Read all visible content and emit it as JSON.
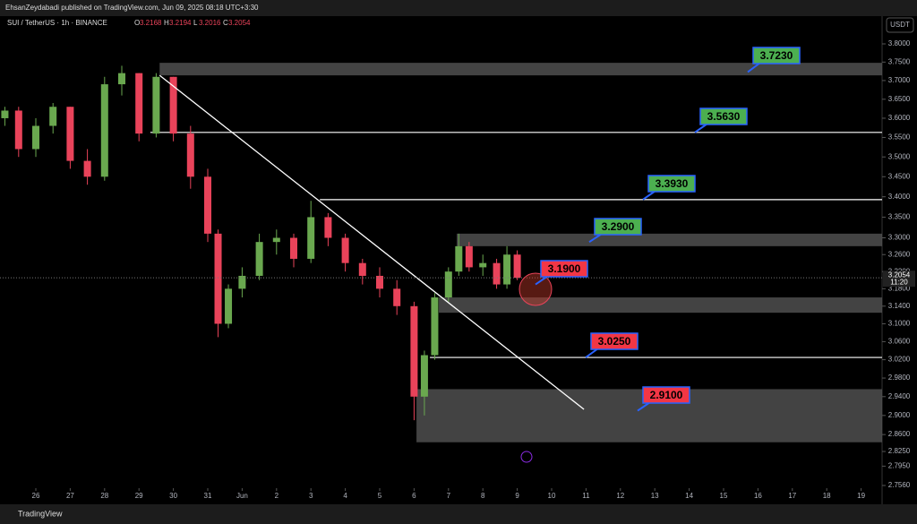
{
  "header": {
    "publisher": "EhsanZeydabadi published on TradingView.com, Jun 09, 2025 08:18 UTC+3:30",
    "symbol": "SUI / TetherUS · 1h · BINANCE",
    "ohlc": [
      {
        "key": "O",
        "value": "3.2168"
      },
      {
        "key": "H",
        "value": "3.2194"
      },
      {
        "key": "L",
        "value": "3.2016"
      },
      {
        "key": "C",
        "value": "3.2054"
      }
    ]
  },
  "chart_data": {
    "type": "candlestick",
    "log_scale": true,
    "currency": "USDT",
    "up_color": "#6aa84f",
    "down_color": "#e9435a",
    "x": [
      -0.9,
      -0.5,
      0,
      0.5,
      1,
      1.5,
      2,
      2.5,
      3,
      3.5,
      4,
      4.5,
      5,
      5.3,
      5.6,
      6,
      6.5,
      7,
      7.5,
      8,
      8.5,
      9,
      9.5,
      10,
      10.5,
      11,
      11.3,
      11.6,
      12,
      12.3,
      12.6,
      13,
      13.4,
      13.7,
      14
    ],
    "open": [
      3.6,
      3.62,
      3.52,
      3.58,
      3.63,
      3.49,
      3.45,
      3.69,
      3.72,
      3.56,
      3.71,
      3.56,
      3.45,
      3.31,
      3.1,
      3.18,
      3.21,
      3.29,
      3.3,
      3.25,
      3.35,
      3.3,
      3.24,
      3.21,
      3.18,
      3.14,
      2.94,
      3.03,
      3.16,
      3.22,
      3.28,
      3.23,
      3.24,
      3.19,
      3.26
    ],
    "high": [
      3.63,
      3.63,
      3.6,
      3.64,
      3.63,
      3.52,
      3.71,
      3.74,
      3.72,
      3.72,
      3.71,
      3.58,
      3.47,
      3.32,
      3.19,
      3.23,
      3.31,
      3.32,
      3.31,
      3.39,
      3.36,
      3.31,
      3.25,
      3.23,
      3.2,
      3.15,
      3.04,
      3.17,
      3.23,
      3.31,
      3.29,
      3.26,
      3.25,
      3.28,
      3.27
    ],
    "low": [
      3.58,
      3.5,
      3.5,
      3.56,
      3.47,
      3.43,
      3.44,
      3.66,
      3.54,
      3.55,
      3.54,
      3.42,
      3.29,
      3.07,
      3.09,
      3.16,
      3.2,
      3.26,
      3.23,
      3.24,
      3.28,
      3.22,
      3.19,
      3.16,
      3.12,
      2.89,
      2.9,
      3.02,
      3.15,
      3.21,
      3.22,
      3.21,
      3.18,
      3.18,
      3.2
    ],
    "close": [
      3.62,
      3.52,
      3.58,
      3.63,
      3.49,
      3.45,
      3.69,
      3.72,
      3.56,
      3.71,
      3.56,
      3.45,
      3.31,
      3.1,
      3.18,
      3.21,
      3.29,
      3.3,
      3.25,
      3.35,
      3.3,
      3.24,
      3.21,
      3.18,
      3.14,
      2.94,
      3.03,
      3.16,
      3.22,
      3.28,
      3.23,
      3.24,
      3.19,
      3.26,
      3.2054
    ],
    "xlim": [
      -1.0417,
      24.6094
    ],
    "xticks": [
      {
        "value": 0,
        "label": "26"
      },
      {
        "value": 1,
        "label": "27"
      },
      {
        "value": 2,
        "label": "28"
      },
      {
        "value": 3,
        "label": "29"
      },
      {
        "value": 4,
        "label": "30"
      },
      {
        "value": 5,
        "label": "31"
      },
      {
        "value": 6,
        "label": "Jun"
      },
      {
        "value": 7,
        "label": "2"
      },
      {
        "value": 8,
        "label": "3"
      },
      {
        "value": 9,
        "label": "4"
      },
      {
        "value": 10,
        "label": "5"
      },
      {
        "value": 11,
        "label": "6"
      },
      {
        "value": 12,
        "label": "7"
      },
      {
        "value": 13,
        "label": "8"
      },
      {
        "value": 14,
        "label": "9"
      },
      {
        "value": 15,
        "label": "10"
      },
      {
        "value": 16,
        "label": "11"
      },
      {
        "value": 17,
        "label": "12"
      },
      {
        "value": 18,
        "label": "13"
      },
      {
        "value": 19,
        "label": "14"
      },
      {
        "value": 20,
        "label": "15"
      },
      {
        "value": 21,
        "label": "16"
      },
      {
        "value": 22,
        "label": "17"
      },
      {
        "value": 23,
        "label": "18"
      },
      {
        "value": 24,
        "label": "19"
      }
    ],
    "ylim": [
      2.7506,
      3.8775
    ],
    "yticks": [
      {
        "value": 3.8,
        "label": "3.8000"
      },
      {
        "value": 3.75,
        "label": "3.7500"
      },
      {
        "value": 3.7,
        "label": "3.7000"
      },
      {
        "value": 3.65,
        "label": "3.6500"
      },
      {
        "value": 3.6,
        "label": "3.6000"
      },
      {
        "value": 3.55,
        "label": "3.5500"
      },
      {
        "value": 3.5,
        "label": "3.5000"
      },
      {
        "value": 3.45,
        "label": "3.4500"
      },
      {
        "value": 3.4,
        "label": "3.4000"
      },
      {
        "value": 3.35,
        "label": "3.3500"
      },
      {
        "value": 3.3,
        "label": "3.3000"
      },
      {
        "value": 3.26,
        "label": "3.2600"
      },
      {
        "value": 3.22,
        "label": "3.2200"
      },
      {
        "value": 3.18,
        "label": "3.1800"
      },
      {
        "value": 3.14,
        "label": "3.1400"
      },
      {
        "value": 3.1,
        "label": "3.1000"
      },
      {
        "value": 3.06,
        "label": "3.0600"
      },
      {
        "value": 3.02,
        "label": "3.0200"
      },
      {
        "value": 2.98,
        "label": "2.9800"
      },
      {
        "value": 2.94,
        "label": "2.9400"
      },
      {
        "value": 2.9,
        "label": "2.9000"
      },
      {
        "value": 2.86,
        "label": "2.8600"
      },
      {
        "value": 2.825,
        "label": "2.8250"
      },
      {
        "value": 2.795,
        "label": "2.7950"
      },
      {
        "value": 2.756,
        "label": "2.7560"
      }
    ],
    "last": {
      "value": 3.2054,
      "label": "3.2054",
      "countdown": "11:20"
    },
    "levels": [
      {
        "value": 3.723,
        "label": "3.7230",
        "color": "#4caf50",
        "zone": [
          3.714,
          3.748
        ],
        "from": 3.6
      },
      {
        "value": 3.563,
        "label": "3.5630",
        "color": "#4caf50",
        "from": 3.33
      },
      {
        "value": 3.393,
        "label": "3.3930",
        "color": "#4caf50",
        "from": 8.26
      },
      {
        "value": 3.29,
        "label": "3.2900",
        "color": "#4caf50",
        "zone": [
          3.28,
          3.31
        ],
        "from": 12.24
      },
      {
        "value": 3.19,
        "label": "3.1900",
        "color": "#f23645",
        "zone": [
          3.125,
          3.16
        ],
        "from": 11.72
      },
      {
        "value": 3.025,
        "label": "3.0250",
        "color": "#f23645",
        "from": 11.46
      },
      {
        "value": 2.91,
        "label": "2.9100",
        "color": "#f23645",
        "zone": [
          2.844,
          2.956
        ],
        "from": 11.07
      }
    ],
    "trendline": {
      "x": [
        3.6,
        15.94
      ],
      "y": [
        3.714,
        2.913
      ]
    }
  },
  "footer": "TradingView"
}
